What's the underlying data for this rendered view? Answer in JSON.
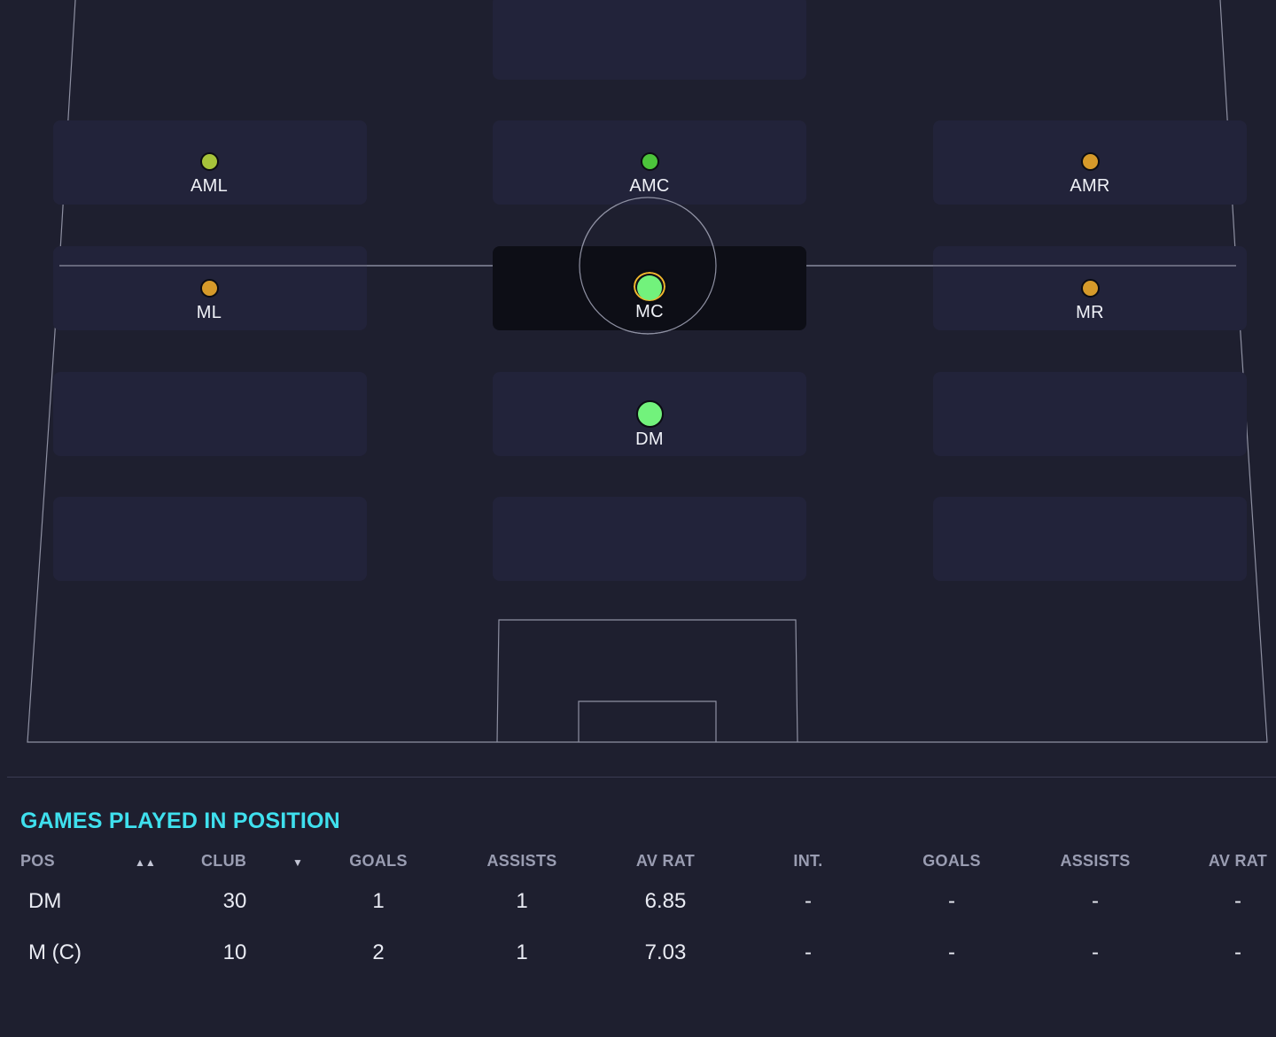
{
  "pitch": {
    "positions": [
      {
        "label": "AML",
        "color": "#a6c33a"
      },
      {
        "label": "AMC",
        "color": "#4cc43b"
      },
      {
        "label": "AMR",
        "color": "#d69a2a"
      },
      {
        "label": "ML",
        "color": "#d69a2a"
      },
      {
        "label": "MC",
        "color": "#72f27c",
        "selected": true,
        "ring_color": "#f1b82d"
      },
      {
        "label": "MR",
        "color": "#d69a2a"
      },
      {
        "label": "DM",
        "color": "#72f27c"
      }
    ]
  },
  "section": {
    "title": "GAMES PLAYED IN POSITION"
  },
  "table": {
    "headers": [
      "POS",
      "CLUB",
      "GOALS",
      "ASSISTS",
      "AV RAT",
      "INT.",
      "GOALS",
      "ASSISTS",
      "AV RAT"
    ],
    "sort_icon": "sort-ascending-icon",
    "dropdown_icon": "caret-down-icon",
    "rows": [
      [
        "DM",
        "30",
        "1",
        "1",
        "6.85",
        "-",
        "-",
        "-",
        "-"
      ],
      [
        "M (C)",
        "10",
        "2",
        "1",
        "7.03",
        "-",
        "-",
        "-",
        "-"
      ]
    ]
  },
  "colors": {
    "background": "#1e1f2f",
    "title": "#3fe0ee",
    "header": "#9a9db2",
    "pitch_lines": "#8e90a2"
  }
}
